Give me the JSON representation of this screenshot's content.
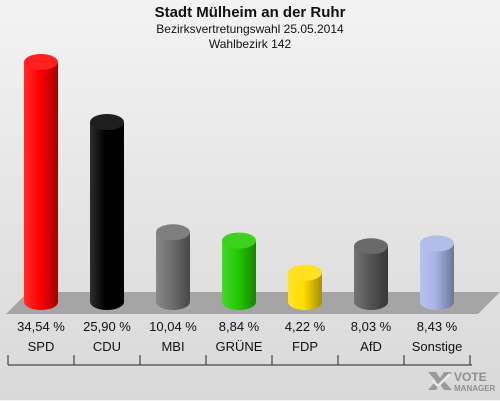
{
  "header": {
    "title": "Stadt Mülheim an der Ruhr",
    "subtitle1": "Bezirksvertretungswahl 25.05.2014",
    "subtitle2": "Wahlbezirk 142"
  },
  "logo": {
    "line1": "VOTE",
    "line2": "MANAGER",
    "icon": "vote-manager-x-icon"
  },
  "chart_data": {
    "type": "bar",
    "title": "Stadt Mülheim an der Ruhr",
    "subtitle": "Bezirksvertretungswahl 25.05.2014 / Wahlbezirk 142",
    "categories": [
      "SPD",
      "CDU",
      "MBI",
      "GRÜNE",
      "FDP",
      "AfD",
      "Sonstige"
    ],
    "values": [
      34.54,
      25.9,
      10.04,
      8.84,
      4.22,
      8.03,
      8.43
    ],
    "value_labels": [
      "34,54 %",
      "25,90 %",
      "10,04 %",
      "8,84 %",
      "4,22 %",
      "8,03 %",
      "8,43 %"
    ],
    "colors": [
      "#ff0000",
      "#000000",
      "#6e6e6e",
      "#22cc00",
      "#ffdd00",
      "#555555",
      "#a8b4e6"
    ],
    "ylim": [
      0,
      34.54
    ],
    "grid": false,
    "legend": "none"
  }
}
